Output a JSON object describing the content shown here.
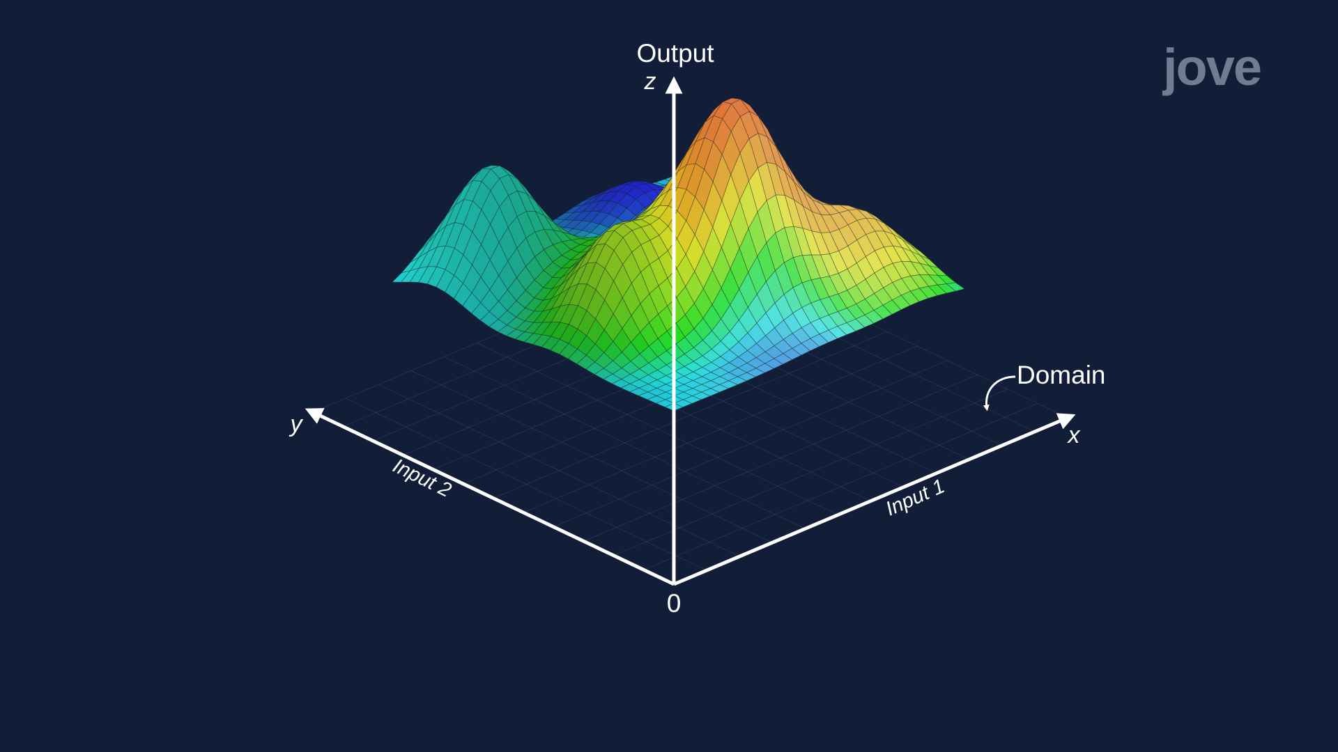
{
  "axes": {
    "z_title": "Output",
    "z": "z",
    "y": "y",
    "x": "x",
    "origin": "0",
    "x_title": "Input 1",
    "y_title": "Input 2"
  },
  "annotation": "Domain",
  "logo": "jove"
}
